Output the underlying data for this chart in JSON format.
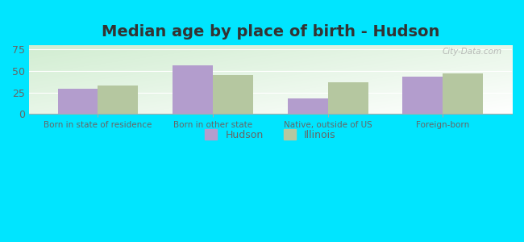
{
  "title": "Median age by place of birth - Hudson",
  "categories": [
    "Born in state of residence",
    "Born in other state",
    "Native, outside of US",
    "Foreign-born"
  ],
  "hudson_values": [
    29,
    57,
    18,
    43
  ],
  "illinois_values": [
    33,
    45,
    37,
    47
  ],
  "hudson_color": "#b39dcd",
  "illinois_color": "#b5c7a0",
  "background_outer": "#00e5ff",
  "ylim": [
    0,
    80
  ],
  "yticks": [
    0,
    25,
    50,
    75
  ],
  "legend_labels": [
    "Hudson",
    "Illinois"
  ],
  "bar_width": 0.35,
  "title_fontsize": 14,
  "title_color": "#333333",
  "grid_color": "#ccddcc",
  "tick_color": "#666666",
  "watermark": "City-Data.com"
}
